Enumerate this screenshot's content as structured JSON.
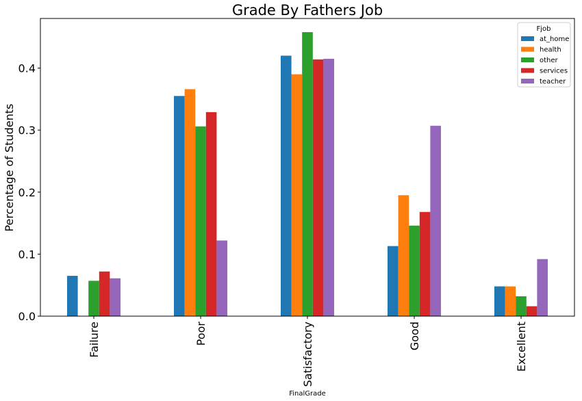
{
  "chart_data": {
    "type": "bar",
    "title": "Grade By Fathers Job",
    "xlabel": "FinalGrade",
    "ylabel": "Percentage of Students",
    "categories": [
      "Failure",
      "Poor",
      "Satisfactory",
      "Good",
      "Excellent"
    ],
    "ylim": [
      0,
      0.48
    ],
    "yticks": [
      "0.0",
      "0.1",
      "0.2",
      "0.3",
      "0.4"
    ],
    "legend": {
      "title": "Fjob",
      "placement": "top-right"
    },
    "grid": false,
    "series": [
      {
        "name": "at_home",
        "color": "#1f77b4",
        "values": [
          0.065,
          0.355,
          0.42,
          0.113,
          0.048
        ]
      },
      {
        "name": "health",
        "color": "#ff7f0e",
        "values": [
          0.0,
          0.366,
          0.39,
          0.195,
          0.048
        ]
      },
      {
        "name": "other",
        "color": "#2ca02c",
        "values": [
          0.057,
          0.306,
          0.458,
          0.146,
          0.032
        ]
      },
      {
        "name": "services",
        "color": "#d62728",
        "values": [
          0.072,
          0.329,
          0.414,
          0.168,
          0.016
        ]
      },
      {
        "name": "teacher",
        "color": "#9467bd",
        "values": [
          0.061,
          0.122,
          0.415,
          0.307,
          0.092
        ]
      }
    ]
  }
}
